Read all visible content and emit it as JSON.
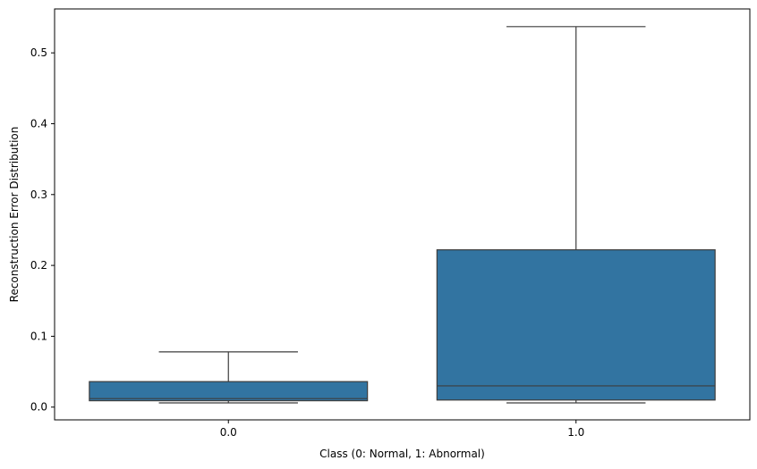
{
  "chart_data": {
    "type": "box",
    "categories": [
      "0.0",
      "1.0"
    ],
    "xlabel": "Class (0: Normal, 1: Abnormal)",
    "ylabel": "Reconstruction Error Distribution",
    "ylim": [
      -0.018,
      0.562
    ],
    "yticks": [
      0.0,
      0.1,
      0.2,
      0.3,
      0.4,
      0.5
    ],
    "ytick_labels": [
      "0.0",
      "0.1",
      "0.2",
      "0.3",
      "0.4",
      "0.5"
    ],
    "grid": false,
    "box_color": "#3274a1",
    "line_color": "#3d3d3d",
    "boxes": [
      {
        "category": "0.0",
        "whisker_low": 0.006,
        "q1": 0.009,
        "median": 0.012,
        "q3": 0.036,
        "whisker_high": 0.078
      },
      {
        "category": "1.0",
        "whisker_low": 0.006,
        "q1": 0.01,
        "median": 0.03,
        "q3": 0.222,
        "whisker_high": 0.537
      }
    ]
  }
}
